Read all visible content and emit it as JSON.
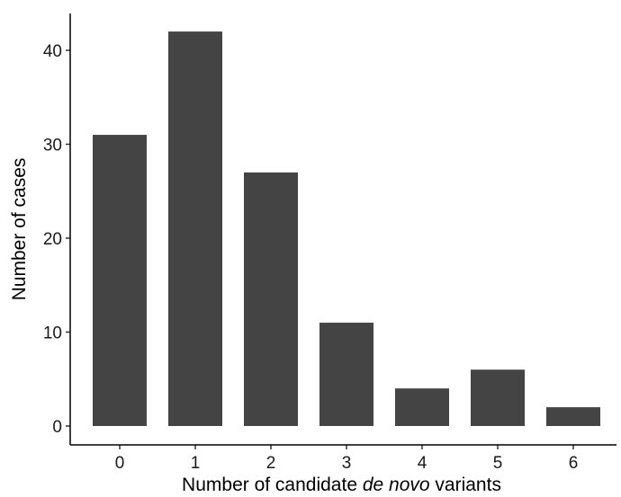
{
  "chart_data": {
    "type": "bar",
    "categories": [
      "0",
      "1",
      "2",
      "3",
      "4",
      "5",
      "6"
    ],
    "values": [
      31,
      42,
      27,
      11,
      4,
      6,
      2
    ],
    "title": "",
    "xlabel": {
      "prefix": "Number of candidate ",
      "italic": "de novo",
      "suffix": " variants"
    },
    "ylabel": "Number of cases",
    "ylim": [
      0,
      45
    ],
    "yticks": [
      "0",
      "10",
      "20",
      "30",
      "40"
    ],
    "bar_color": "#444444",
    "axis_color": "#000000",
    "grid": false,
    "legend": "none"
  }
}
